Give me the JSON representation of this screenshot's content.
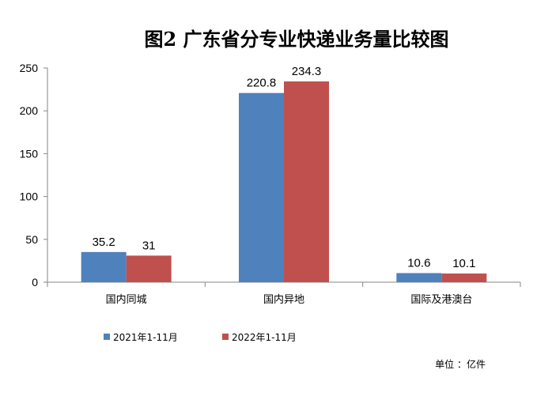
{
  "chart_data": {
    "type": "bar",
    "title": "图2 广东省分专业快递业务量比较图",
    "unit_note": "单位 ：亿件",
    "categories": [
      "国内同城",
      "国内异地",
      "国际及港澳台"
    ],
    "ylim": [
      0,
      250
    ],
    "yticks": [
      "0",
      "50",
      "100",
      "150",
      "200",
      "250"
    ],
    "grid": false,
    "legend_position": "bottom-left",
    "series": [
      {
        "name": "2021年1-11月",
        "color": "#4F81BD",
        "values": [
          35.2,
          220.8,
          10.6
        ],
        "labels": [
          "35.2",
          "220.8",
          "10.6"
        ]
      },
      {
        "name": "2022年1-11月",
        "color": "#C0504D",
        "values": [
          31,
          234.3,
          10.1
        ],
        "labels": [
          "31",
          "234.3",
          "10.1"
        ]
      }
    ]
  }
}
